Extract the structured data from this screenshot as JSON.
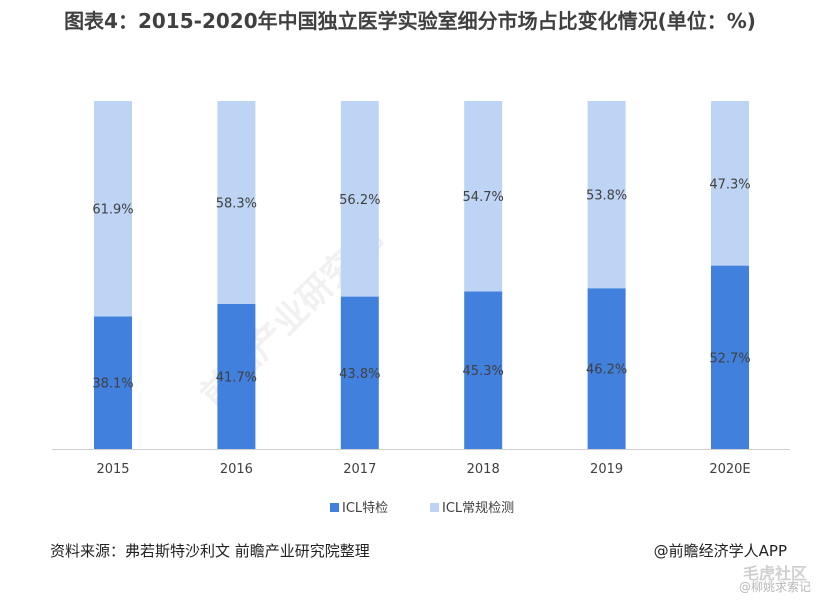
{
  "title": "图表4：2015-2020年中国独立医学实验室细分市场占比变化情况(单位：%)",
  "chart_data": {
    "type": "bar",
    "stacked": true,
    "categories": [
      "2015",
      "2016",
      "2017",
      "2018",
      "2019",
      "2020E"
    ],
    "series": [
      {
        "name": "ICL特检",
        "values": [
          38.1,
          41.7,
          43.8,
          45.3,
          46.2,
          52.7
        ],
        "color": "#4180dd"
      },
      {
        "name": "ICL常规检测",
        "values": [
          61.9,
          58.3,
          56.2,
          54.7,
          53.8,
          47.3
        ],
        "color": "#bdd4f4"
      }
    ],
    "data_labels": [
      [
        "38.1%",
        "41.7%",
        "43.8%",
        "45.3%",
        "46.2%",
        "52.7%"
      ],
      [
        "61.9%",
        "58.3%",
        "56.2%",
        "54.7%",
        "53.8%",
        "47.3%"
      ]
    ],
    "ylim": [
      0,
      100
    ],
    "grid": false,
    "legend_position": "bottom"
  },
  "footer": {
    "source": "资料来源：弗若斯特沙利文 前瞻产业研究院整理",
    "brand": "@前瞻经济学人APP"
  },
  "watermark": {
    "text": "前瞻产业研究院",
    "corner1": "毛虎社区",
    "corner2": "@柳姚求索记"
  }
}
